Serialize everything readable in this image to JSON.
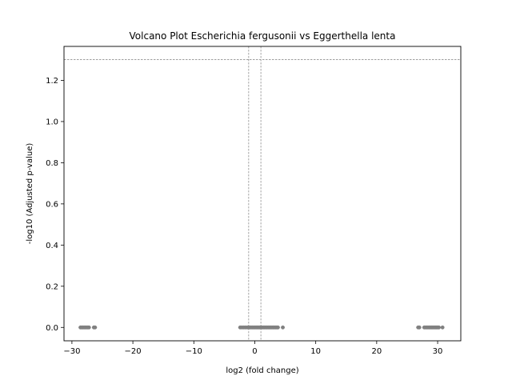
{
  "chart_data": {
    "type": "scatter",
    "title": "Volcano Plot Escherichia fergusonii vs Eggerthella lenta",
    "xlabel": "log2 (fold change)",
    "ylabel": "-log10 (Adjusted p-value)",
    "xlim": [
      -31.3,
      33.8
    ],
    "ylim": [
      -0.065,
      1.365
    ],
    "xticks": [
      -30,
      -20,
      -10,
      0,
      10,
      20,
      30
    ],
    "yticks": [
      0.0,
      0.2,
      0.4,
      0.6,
      0.8,
      1.0,
      1.2
    ],
    "xtick_labels": [
      "−30",
      "−20",
      "−10",
      "0",
      "10",
      "20",
      "30"
    ],
    "ytick_labels": [
      "0.0",
      "0.2",
      "0.4",
      "0.6",
      "0.8",
      "1.0",
      "1.2"
    ],
    "threshold_lines": {
      "x": [
        -1,
        1
      ],
      "y": 1.301
    },
    "point_color": "#808080",
    "line_color": "#808080",
    "grid": false,
    "series": [
      {
        "x": [
          -28.6,
          -28.4,
          -28.2,
          -28.0,
          -27.8,
          -27.6,
          -27.4,
          -27.2,
          -26.4,
          -26.2,
          -2.4,
          -2.1,
          -1.8,
          -1.5,
          -1.2,
          -1.0,
          -0.8,
          -0.6,
          -0.4,
          -0.2,
          0.0,
          0.2,
          0.4,
          0.6,
          0.8,
          1.0,
          1.2,
          1.4,
          1.6,
          1.8,
          2.0,
          2.2,
          2.4,
          2.6,
          2.8,
          3.0,
          3.2,
          3.4,
          3.6,
          3.8,
          4.6,
          26.8,
          27.0,
          27.8,
          28.0,
          28.2,
          28.4,
          28.6,
          28.8,
          29.0,
          29.2,
          29.4,
          29.6,
          29.8,
          30.0,
          30.2,
          30.8
        ],
        "y": [
          0,
          0,
          0,
          0,
          0,
          0,
          0,
          0,
          0,
          0,
          0,
          0,
          0,
          0,
          0,
          0,
          0,
          0,
          0,
          0,
          0,
          0,
          0,
          0,
          0,
          0,
          0,
          0,
          0,
          0,
          0,
          0,
          0,
          0,
          0,
          0,
          0,
          0,
          0,
          0,
          0,
          0,
          0,
          0,
          0,
          0,
          0,
          0,
          0,
          0,
          0,
          0,
          0,
          0,
          0,
          0,
          0
        ]
      }
    ]
  }
}
